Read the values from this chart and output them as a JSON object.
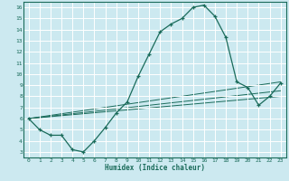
{
  "title": "",
  "xlabel": "Humidex (Indice chaleur)",
  "ylabel": "",
  "bg_color": "#cce9f0",
  "grid_color": "#ffffff",
  "line_color": "#1a6b5a",
  "xlim": [
    -0.5,
    23.5
  ],
  "ylim": [
    2.5,
    16.5
  ],
  "xticks": [
    0,
    1,
    2,
    3,
    4,
    5,
    6,
    7,
    8,
    9,
    10,
    11,
    12,
    13,
    14,
    15,
    16,
    17,
    18,
    19,
    20,
    21,
    22,
    23
  ],
  "yticks": [
    3,
    4,
    5,
    6,
    7,
    8,
    9,
    10,
    11,
    12,
    13,
    14,
    15,
    16
  ],
  "main_x": [
    0,
    1,
    2,
    3,
    4,
    5,
    6,
    7,
    8,
    9,
    10,
    11,
    12,
    13,
    14,
    15,
    16,
    17,
    18,
    19,
    20,
    21,
    22,
    23
  ],
  "main_y": [
    6.0,
    5.0,
    4.5,
    4.5,
    3.2,
    3.0,
    4.0,
    5.2,
    6.5,
    7.5,
    9.8,
    11.8,
    13.8,
    14.5,
    15.0,
    16.0,
    16.2,
    15.2,
    13.3,
    9.3,
    8.8,
    7.2,
    8.0,
    9.2
  ],
  "trend1_x": [
    0,
    23
  ],
  "trend1_y": [
    6.0,
    9.3
  ],
  "trend2_x": [
    0,
    23
  ],
  "trend2_y": [
    6.0,
    8.5
  ],
  "trend3_x": [
    0,
    23
  ],
  "trend3_y": [
    6.0,
    8.0
  ]
}
